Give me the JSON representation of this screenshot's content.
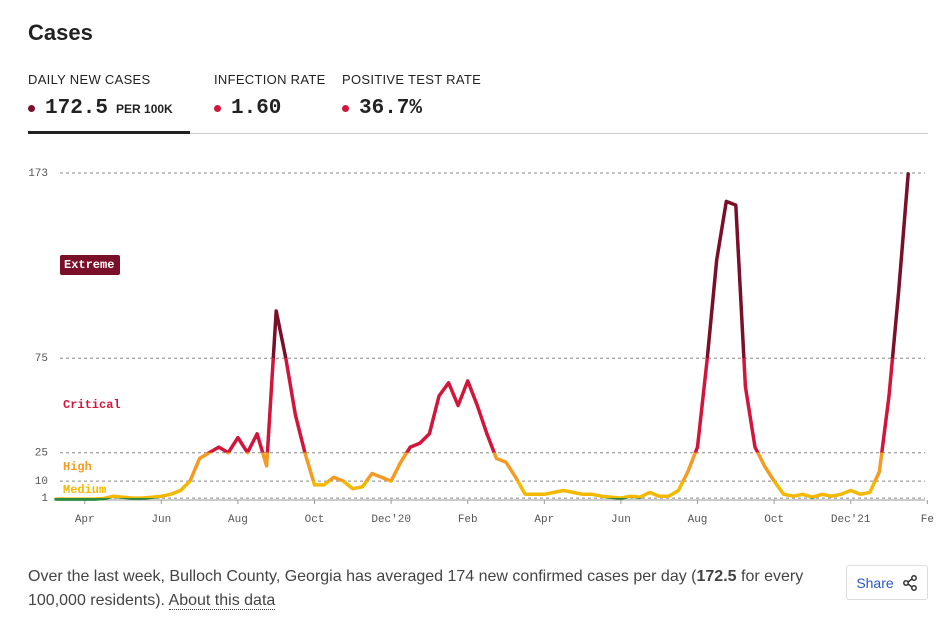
{
  "header": {
    "title": "Cases"
  },
  "tabs": [
    {
      "label": "DAILY NEW CASES",
      "value": "172.5",
      "unit": "PER 100K",
      "color": "#7a0f2a"
    },
    {
      "label": "INFECTION RATE",
      "value": "1.60",
      "color": "#d2163b"
    },
    {
      "label": "POSITIVE TEST RATE",
      "value": "36.7%",
      "color": "#d2163b"
    }
  ],
  "chart_data": {
    "type": "line",
    "categories": [
      null,
      null,
      null,
      "Apr",
      null,
      null,
      null,
      null,
      null,
      null,
      null,
      "Jun",
      null,
      null,
      null,
      null,
      null,
      null,
      null,
      "Aug",
      null,
      null,
      null,
      null,
      null,
      null,
      null,
      "Oct",
      null,
      null,
      null,
      null,
      null,
      null,
      null,
      "Dec'20",
      null,
      null,
      null,
      null,
      null,
      null,
      null,
      "Feb",
      null,
      null,
      null,
      null,
      null,
      null,
      null,
      "Apr",
      null,
      null,
      null,
      null,
      null,
      null,
      null,
      "Jun",
      null,
      null,
      null,
      null,
      null,
      null,
      null,
      "Aug",
      null,
      null,
      null,
      null,
      null,
      null,
      null,
      "Oct",
      null,
      null,
      null,
      null,
      null,
      null,
      null,
      "Dec'21",
      null,
      null,
      null,
      null,
      null,
      null,
      null,
      "Fe"
    ],
    "values": [
      0.5,
      0.5,
      0.5,
      0.5,
      0.5,
      0.8,
      2,
      1.5,
      1,
      1,
      1.5,
      2,
      3,
      5,
      10,
      22,
      25,
      28,
      25,
      33,
      25,
      35,
      18,
      100,
      75,
      45,
      25,
      8,
      8,
      12,
      10,
      6,
      7,
      14,
      12,
      10,
      20,
      28,
      30,
      35,
      55,
      62,
      50,
      63,
      50,
      35,
      22,
      20,
      12,
      3,
      3,
      3,
      4,
      5,
      4,
      3,
      3,
      2,
      1.5,
      1,
      2,
      1.5,
      4,
      2,
      2,
      5,
      15,
      28,
      74,
      127,
      158,
      156,
      60,
      28,
      18,
      10,
      3,
      2,
      3,
      1.5,
      3,
      2,
      3,
      5,
      3,
      4,
      15,
      55,
      110,
      172.5,
      null,
      null
    ],
    "ylim": [
      0,
      173
    ],
    "yticks": [
      1,
      10,
      25,
      75,
      173
    ],
    "grid": true,
    "thresholds": [
      1,
      10,
      25,
      75
    ],
    "colors": [
      "#2e8b3e",
      "#f5b800",
      "#f59a23",
      "#d2163b",
      "#7a0f2a"
    ],
    "band_labels": [
      "Medium",
      "High",
      "Critical",
      "Extreme"
    ]
  },
  "footer": {
    "text_before": "Over the last week, Bulloch County, Georgia has averaged 174 new confirmed cases per day (",
    "bold": "172.5",
    "text_after": " for every 100,000 residents).",
    "link": "About this data",
    "share": "Share"
  }
}
